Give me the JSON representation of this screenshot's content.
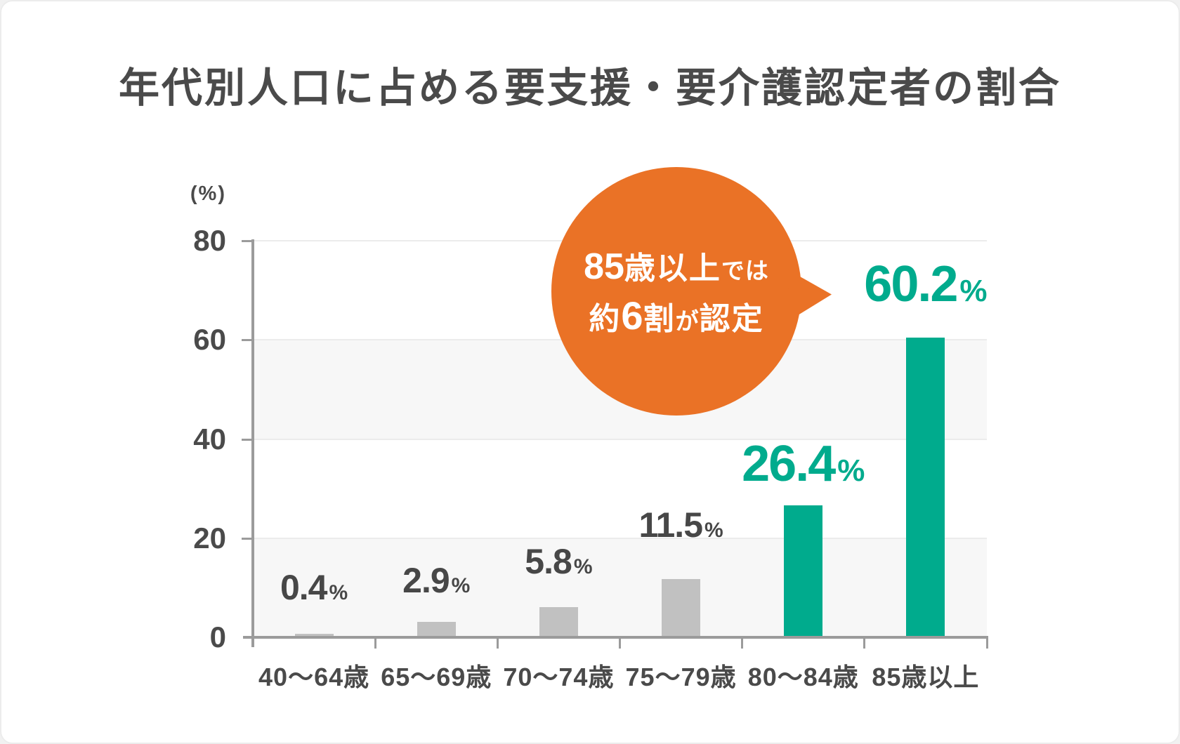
{
  "title": "年代別人口に占める要支援・要介護認定者の割合",
  "chart_data": {
    "type": "bar",
    "categories": [
      "40〜64歳",
      "65〜69歳",
      "70〜74歳",
      "75〜79歳",
      "80〜84歳",
      "85歳以上"
    ],
    "values": [
      0.4,
      2.9,
      5.8,
      11.5,
      26.4,
      60.2
    ],
    "value_labels": [
      "0.4",
      "2.9",
      "5.8",
      "11.5",
      "26.4",
      "60.2"
    ],
    "value_suffix": "%",
    "highlight": [
      false,
      false,
      false,
      false,
      true,
      true
    ],
    "ylabel": "(%)",
    "y_ticks": [
      0,
      20,
      40,
      60,
      80
    ],
    "y_tick_labels": [
      "0",
      "20",
      "40",
      "60",
      "80"
    ],
    "ylim": [
      0,
      80
    ],
    "grid": true,
    "legend": "none",
    "bar_default_color": "#C1C1C1",
    "bar_highlight_color": "#00AB8D",
    "band_color": "#F7F7F7",
    "gridline_color": "#ECECEC",
    "axis_color": "#9B9B9B",
    "label_color": "#4A4A4A"
  },
  "annotation": {
    "line1_num": "85",
    "line1_big": "歳以上",
    "line1_small": "では",
    "line2_big1": "約",
    "line2_num": "6",
    "line2_big2": "割",
    "line2_small": "が",
    "line2_big3": "認定",
    "bubble_color": "#EA7226",
    "text_color": "#FFFFFF"
  }
}
